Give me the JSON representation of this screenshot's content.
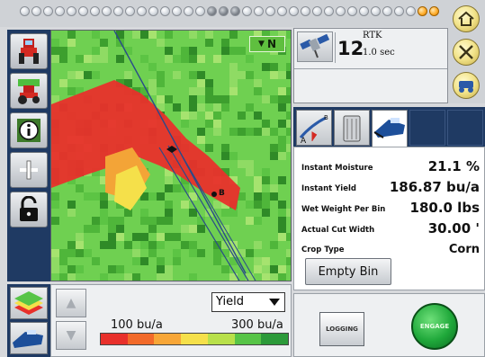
{
  "map": {
    "north_label": "N",
    "marker_label": "B"
  },
  "gps": {
    "satellite_count": "12",
    "correction_mode": "RTK",
    "update_interval": "1.0 sec"
  },
  "data_panel": {
    "rows": [
      {
        "label": "Instant Moisture",
        "value": "21.1 %"
      },
      {
        "label": "Instant Yield",
        "value": "186.87 bu/a"
      },
      {
        "label": "Wet Weight Per Bin",
        "value": "180.0 lbs"
      },
      {
        "label": "Actual Cut Width",
        "value": "30.00 '"
      },
      {
        "label": "Crop Type",
        "value": "Corn"
      }
    ],
    "empty_bin_label": "Empty Bin"
  },
  "legend": {
    "layer_selected": "Yield",
    "low_label": "100 bu/a",
    "high_label": "300 bu/a",
    "colors": [
      "#e8302b",
      "#f26a2a",
      "#f7a637",
      "#f5e04a",
      "#b8e04a",
      "#57c447",
      "#2c9a3a"
    ]
  },
  "controls": {
    "logging_label": "LOGGING",
    "engage_label": "ENGAGE"
  },
  "colors": {
    "toolbar_blue": "#1f3a63",
    "map_green": "#6fd051",
    "map_red": "#e8302b"
  }
}
